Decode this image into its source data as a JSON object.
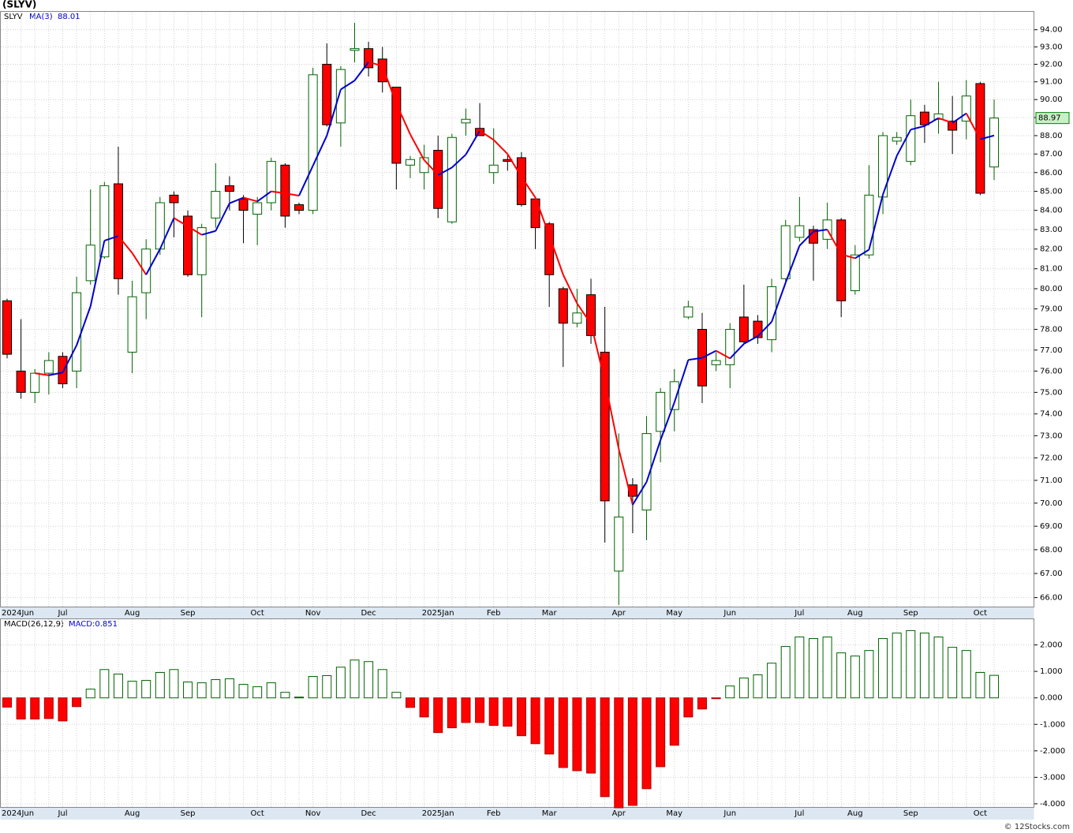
{
  "chart_data": [
    {
      "type": "candlestick",
      "title": "(SLYV)",
      "symbol": "SLYV",
      "categories": [
        "2024Jun",
        null,
        null,
        null,
        "Jul",
        null,
        null,
        null,
        null,
        "Aug",
        null,
        null,
        null,
        "Sep",
        null,
        null,
        null,
        null,
        "Oct",
        null,
        null,
        null,
        "Nov",
        null,
        null,
        null,
        "Dec",
        null,
        null,
        null,
        null,
        "2025Jan",
        null,
        null,
        null,
        "Feb",
        null,
        null,
        null,
        "Mar",
        null,
        null,
        null,
        null,
        "Apr",
        null,
        null,
        null,
        "May",
        null,
        null,
        null,
        "Jun",
        null,
        null,
        null,
        null,
        "Jul",
        null,
        null,
        null,
        "Aug",
        null,
        null,
        null,
        "Sep",
        null,
        null,
        null,
        null,
        "Oct",
        null
      ],
      "open": [
        79.4,
        76.0,
        75.0,
        75.9,
        76.7,
        76.0,
        80.4,
        81.6,
        85.4,
        76.9,
        79.8,
        82.0,
        84.8,
        83.7,
        80.7,
        83.6,
        85.3,
        84.6,
        83.8,
        84.4,
        86.4,
        84.3,
        84.0,
        92.0,
        88.7,
        92.8,
        92.9,
        92.3,
        90.7,
        86.4,
        86.0,
        87.2,
        83.4,
        88.7,
        88.4,
        86.0,
        86.7,
        86.8,
        84.6,
        83.3,
        80.0,
        78.3,
        79.7,
        76.9,
        67.1,
        70.8,
        69.7,
        73.2,
        74.2,
        78.6,
        78.0,
        76.3,
        76.3,
        78.6,
        78.4,
        77.5,
        80.5,
        82.6,
        83.0,
        82.5,
        83.5,
        79.9,
        81.7,
        84.7,
        87.7,
        86.6,
        89.3,
        88.9,
        88.8,
        88.8,
        90.9,
        86.3
      ],
      "high": [
        79.5,
        78.5,
        76.1,
        76.9,
        76.9,
        80.6,
        85.1,
        85.5,
        87.4,
        80.4,
        82.5,
        84.7,
        85.0,
        84.0,
        83.3,
        86.5,
        85.8,
        84.8,
        84.7,
        86.8,
        86.5,
        84.4,
        91.8,
        93.2,
        91.9,
        94.4,
        93.3,
        93.0,
        90.7,
        86.9,
        87.5,
        88.0,
        88.1,
        89.5,
        89.8,
        88.4,
        87.0,
        87.1,
        84.7,
        83.4,
        80.1,
        80.0,
        80.5,
        79.1,
        73.1,
        71.1,
        73.9,
        75.2,
        76.1,
        79.4,
        78.8,
        76.9,
        78.3,
        80.2,
        78.7,
        80.5,
        83.5,
        84.7,
        83.2,
        84.4,
        83.6,
        82.2,
        86.4,
        88.2,
        88.2,
        90.0,
        89.7,
        91.0,
        90.2,
        91.1,
        91.0,
        90.0
      ],
      "low": [
        76.6,
        74.7,
        74.5,
        74.9,
        75.2,
        75.2,
        80.2,
        81.5,
        79.7,
        75.9,
        78.5,
        81.7,
        82.6,
        80.6,
        78.6,
        83.1,
        84.0,
        82.3,
        82.2,
        84.0,
        83.1,
        83.8,
        83.8,
        88.5,
        87.4,
        92.1,
        91.3,
        90.4,
        85.1,
        85.7,
        85.1,
        83.6,
        83.3,
        88.0,
        88.0,
        85.4,
        86.1,
        84.2,
        82.0,
        79.1,
        76.2,
        78.1,
        77.3,
        68.3,
        65.7,
        68.7,
        68.4,
        71.8,
        73.2,
        78.5,
        74.5,
        76.0,
        75.2,
        77.3,
        77.3,
        76.9,
        80.3,
        82.4,
        80.4,
        82.0,
        78.6,
        79.7,
        81.5,
        83.8,
        87.5,
        86.4,
        87.6,
        88.1,
        87.0,
        87.8,
        84.8,
        85.6
      ],
      "close": [
        76.8,
        75.0,
        75.9,
        76.5,
        75.4,
        79.8,
        82.2,
        85.3,
        80.5,
        79.6,
        82.0,
        84.4,
        84.4,
        80.7,
        83.1,
        85.0,
        85.0,
        84.0,
        84.4,
        86.6,
        83.7,
        84.0,
        91.4,
        88.6,
        91.7,
        92.9,
        91.8,
        91.0,
        86.5,
        86.7,
        86.8,
        84.1,
        87.9,
        88.9,
        88.0,
        86.4,
        86.6,
        84.3,
        83.1,
        80.7,
        78.3,
        78.8,
        77.7,
        70.1,
        69.4,
        70.3,
        73.1,
        75.0,
        75.5,
        79.1,
        75.3,
        76.5,
        78.0,
        77.4,
        77.6,
        80.1,
        83.2,
        83.2,
        82.3,
        83.5,
        79.4,
        81.7,
        84.8,
        88.0,
        87.9,
        89.1,
        88.6,
        89.2,
        88.3,
        90.2,
        84.9,
        88.97
      ],
      "up_color": "#006400",
      "down_color": "#ff0000",
      "ma": {
        "name": "MA(3)",
        "rise_color": "#0000cc",
        "fall_color": "#ff0000",
        "values": [
          null,
          null,
          75.9,
          75.8,
          75.93,
          77.23,
          79.13,
          82.43,
          82.67,
          81.8,
          80.7,
          82.0,
          83.6,
          83.17,
          82.73,
          82.93,
          84.37,
          84.67,
          84.47,
          85.0,
          84.9,
          84.77,
          86.37,
          88.0,
          90.57,
          91.07,
          92.13,
          91.9,
          89.77,
          88.07,
          86.67,
          85.87,
          86.27,
          86.97,
          88.27,
          87.77,
          87.0,
          85.77,
          84.67,
          82.7,
          80.7,
          79.27,
          78.27,
          75.53,
          72.4,
          69.93,
          70.93,
          72.8,
          74.53,
          76.53,
          76.63,
          76.97,
          76.6,
          77.3,
          77.67,
          78.37,
          80.3,
          82.17,
          82.9,
          83.0,
          81.73,
          81.53,
          81.97,
          84.83,
          86.9,
          88.33,
          88.53,
          88.97,
          88.7,
          89.23,
          87.8,
          88.01
        ]
      },
      "log_scale": true,
      "grid": true,
      "ylim": [
        65.6,
        95.1
      ],
      "yticks": [
        {
          "value": 66,
          "label": "66.00"
        },
        {
          "value": 67,
          "label": "67.00"
        },
        {
          "value": 68,
          "label": "68.00"
        },
        {
          "value": 69,
          "label": "69.00"
        },
        {
          "value": 70,
          "label": "70.00"
        },
        {
          "value": 71,
          "label": "71.00"
        },
        {
          "value": 72,
          "label": "72.00"
        },
        {
          "value": 73,
          "label": "73.00"
        },
        {
          "value": 74,
          "label": "74.00"
        },
        {
          "value": 75,
          "label": "75.00"
        },
        {
          "value": 76,
          "label": "76.00"
        },
        {
          "value": 77,
          "label": "77.00"
        },
        {
          "value": 78,
          "label": "78.00"
        },
        {
          "value": 79,
          "label": "79.00"
        },
        {
          "value": 80,
          "label": "80.00"
        },
        {
          "value": 81,
          "label": "81.00"
        },
        {
          "value": 82,
          "label": "82.00"
        },
        {
          "value": 83,
          "label": "83.00"
        },
        {
          "value": 84,
          "label": "84.00"
        },
        {
          "value": 85,
          "label": "85.00"
        },
        {
          "value": 86,
          "label": "86.00"
        },
        {
          "value": 87,
          "label": "87.00"
        },
        {
          "value": 88,
          "label": "88.00"
        },
        {
          "value": 89,
          "label": "89.00"
        },
        {
          "value": 90,
          "label": "90.00"
        },
        {
          "value": 91,
          "label": "91.00"
        },
        {
          "value": 92,
          "label": "92.00"
        },
        {
          "value": 93,
          "label": "93.00"
        },
        {
          "value": 94,
          "label": "94.00"
        }
      ]
    },
    {
      "type": "bar",
      "title": "MACD(26,12,9)",
      "value_text": "MACD:0.851",
      "categories": [
        "2024Jun",
        null,
        null,
        null,
        "Jul",
        null,
        null,
        null,
        null,
        "Aug",
        null,
        null,
        null,
        "Sep",
        null,
        null,
        null,
        null,
        "Oct",
        null,
        null,
        null,
        "Nov",
        null,
        null,
        null,
        "Dec",
        null,
        null,
        null,
        null,
        "2025Jan",
        null,
        null,
        null,
        "Feb",
        null,
        null,
        null,
        "Mar",
        null,
        null,
        null,
        null,
        "Apr",
        null,
        null,
        null,
        "May",
        null,
        null,
        null,
        "Jun",
        null,
        null,
        null,
        null,
        "Jul",
        null,
        null,
        null,
        "Aug",
        null,
        null,
        null,
        "Sep",
        null,
        null,
        null,
        null,
        "Oct",
        null
      ],
      "values": [
        -0.35,
        -0.8,
        -0.8,
        -0.78,
        -0.87,
        -0.33,
        0.33,
        1.07,
        0.9,
        0.63,
        0.66,
        0.96,
        1.07,
        0.6,
        0.57,
        0.69,
        0.72,
        0.51,
        0.42,
        0.57,
        0.21,
        0.03,
        0.81,
        0.84,
        1.16,
        1.43,
        1.37,
        1.07,
        0.21,
        -0.36,
        -0.72,
        -1.31,
        -1.13,
        -0.93,
        -0.93,
        -1.04,
        -1.07,
        -1.43,
        -1.73,
        -2.12,
        -2.63,
        -2.75,
        -2.84,
        -3.73,
        -4.15,
        -4.06,
        -3.43,
        -2.6,
        -1.79,
        -0.72,
        -0.42,
        -0.03,
        0.45,
        0.75,
        0.87,
        1.31,
        1.94,
        2.3,
        2.24,
        2.3,
        1.7,
        1.58,
        1.79,
        2.24,
        2.45,
        2.54,
        2.45,
        2.3,
        1.91,
        1.79,
        0.96,
        0.851
      ],
      "pos_color": "#006400",
      "neg_color": "#ff0000",
      "grid": true,
      "ylim": [
        -4.15,
        3.0
      ],
      "yticks": [
        {
          "value": -4,
          "label": "-4.000"
        },
        {
          "value": -3,
          "label": "-3.000"
        },
        {
          "value": -2,
          "label": "-2.000"
        },
        {
          "value": -1,
          "label": "-1.000"
        },
        {
          "value": 0,
          "label": "0.000"
        },
        {
          "value": 1,
          "label": "1.000"
        },
        {
          "value": 2,
          "label": "2.000"
        }
      ]
    }
  ],
  "footer": "© 12Stocks.com"
}
